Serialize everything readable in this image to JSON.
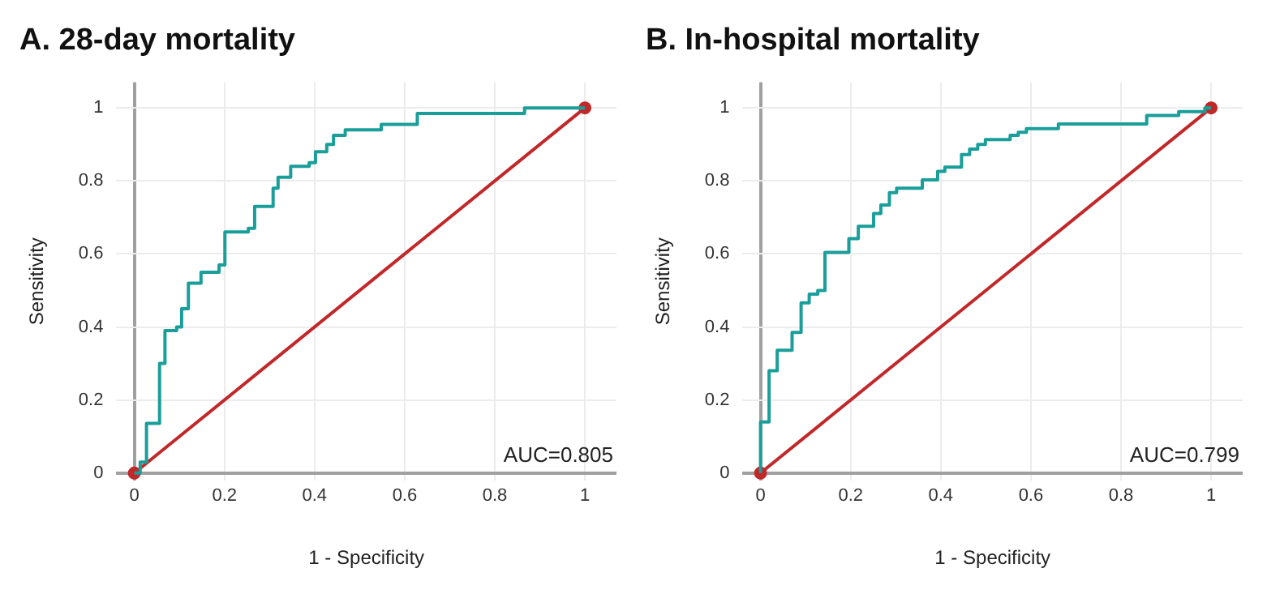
{
  "chart_data": [
    {
      "type": "line",
      "title": "A. 28-day mortality",
      "xlabel": "1 - Specificity",
      "ylabel": "Sensitivity",
      "xlim": [
        -0.04,
        1.07
      ],
      "ylim": [
        -0.02,
        1.07
      ],
      "xticks": [
        0,
        0.2,
        0.4,
        0.6,
        0.8,
        1
      ],
      "yticks": [
        0,
        0.2,
        0.4,
        0.6,
        0.8,
        1
      ],
      "grid": true,
      "legend": false,
      "annotations": [
        "AUC=0.805"
      ],
      "series": [
        {
          "type": "step",
          "color": "#1a9e9a",
          "marker": "none",
          "x": [
            0,
            0.013,
            0.027,
            0.056,
            0.068,
            0.094,
            0.105,
            0.12,
            0.148,
            0.188,
            0.201,
            0.253,
            0.267,
            0.308,
            0.319,
            0.347,
            0.388,
            0.402,
            0.427,
            0.442,
            0.468,
            0.548,
            0.628,
            0.866,
            1
          ],
          "values": [
            0,
            0.03,
            0.136,
            0.3,
            0.39,
            0.4,
            0.45,
            0.52,
            0.55,
            0.57,
            0.66,
            0.67,
            0.73,
            0.78,
            0.81,
            0.84,
            0.85,
            0.88,
            0.9,
            0.925,
            0.94,
            0.955,
            0.985,
            1,
            1
          ]
        },
        {
          "color": "#c0282a",
          "marker": "circle",
          "x": [
            0,
            1
          ],
          "values": [
            0,
            1
          ]
        }
      ]
    },
    {
      "type": "line",
      "title": "B. In-hospital mortality",
      "xlabel": "1 - Specificity",
      "ylabel": "Sensitivity",
      "xlim": [
        -0.04,
        1.07
      ],
      "ylim": [
        -0.02,
        1.07
      ],
      "xticks": [
        0,
        0.2,
        0.4,
        0.6,
        0.8,
        1
      ],
      "yticks": [
        0,
        0.2,
        0.4,
        0.6,
        0.8,
        1
      ],
      "grid": true,
      "legend": false,
      "annotations": [
        "AUC=0.799"
      ],
      "series": [
        {
          "type": "step",
          "color": "#1a9e9a",
          "marker": "none",
          "x": [
            0,
            0,
            0.019,
            0.037,
            0.07,
            0.09,
            0.108,
            0.127,
            0.143,
            0.196,
            0.217,
            0.251,
            0.267,
            0.286,
            0.302,
            0.359,
            0.393,
            0.409,
            0.446,
            0.464,
            0.482,
            0.499,
            0.554,
            0.572,
            0.59,
            0.661,
            0.857,
            0.928,
            0.986,
            1
          ],
          "values": [
            0,
            0.14,
            0.28,
            0.336,
            0.385,
            0.466,
            0.49,
            0.5,
            0.604,
            0.642,
            0.676,
            0.711,
            0.734,
            0.768,
            0.78,
            0.803,
            0.826,
            0.838,
            0.872,
            0.887,
            0.9,
            0.913,
            0.925,
            0.933,
            0.943,
            0.956,
            0.979,
            0.99,
            1,
            1
          ]
        },
        {
          "color": "#c0282a",
          "marker": "circle",
          "x": [
            0,
            1
          ],
          "values": [
            0,
            1
          ]
        }
      ]
    }
  ]
}
